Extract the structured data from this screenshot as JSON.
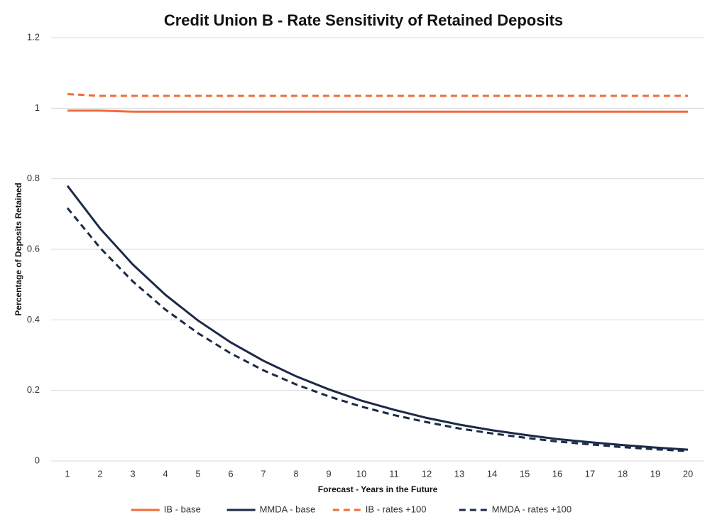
{
  "chart_data": {
    "type": "line",
    "title": "Credit Union B - Rate Sensitivity of Retained Deposits",
    "x_label": "Forecast - Years in the Future",
    "y_label": "Percentage of Deposits Retained",
    "categories": [
      1,
      2,
      3,
      4,
      5,
      6,
      7,
      8,
      9,
      10,
      11,
      12,
      13,
      14,
      15,
      16,
      17,
      18,
      19,
      20
    ],
    "ylim": [
      0,
      1.2
    ],
    "yticks": [
      0,
      0.2,
      0.4,
      0.6,
      0.8,
      1,
      1.2
    ],
    "grid": true,
    "legend": "bottom",
    "series": [
      {
        "name": "IB - base",
        "color": "#f26b3a",
        "dashed": false,
        "values": [
          0.993,
          0.993,
          0.99,
          0.99,
          0.99,
          0.99,
          0.99,
          0.99,
          0.99,
          0.99,
          0.99,
          0.99,
          0.99,
          0.99,
          0.99,
          0.99,
          0.99,
          0.99,
          0.99,
          0.99
        ]
      },
      {
        "name": "MMDA - base",
        "color": "#1b2a47",
        "dashed": false,
        "values": [
          0.78,
          0.659,
          0.557,
          0.471,
          0.398,
          0.336,
          0.284,
          0.24,
          0.203,
          0.171,
          0.145,
          0.122,
          0.103,
          0.087,
          0.074,
          0.062,
          0.053,
          0.045,
          0.038,
          0.032
        ]
      },
      {
        "name": "IB - rates +100",
        "color": "#f26b3a",
        "dashed": true,
        "values": [
          1.04,
          1.035,
          1.035,
          1.035,
          1.035,
          1.035,
          1.035,
          1.035,
          1.035,
          1.035,
          1.035,
          1.035,
          1.035,
          1.035,
          1.035,
          1.035,
          1.035,
          1.035,
          1.035,
          1.035
        ]
      },
      {
        "name": "MMDA - rates +100",
        "color": "#1b2a47",
        "dashed": true,
        "values": [
          0.717,
          0.604,
          0.509,
          0.429,
          0.362,
          0.305,
          0.257,
          0.217,
          0.183,
          0.154,
          0.13,
          0.11,
          0.092,
          0.078,
          0.066,
          0.055,
          0.047,
          0.039,
          0.033,
          0.028
        ]
      }
    ]
  }
}
